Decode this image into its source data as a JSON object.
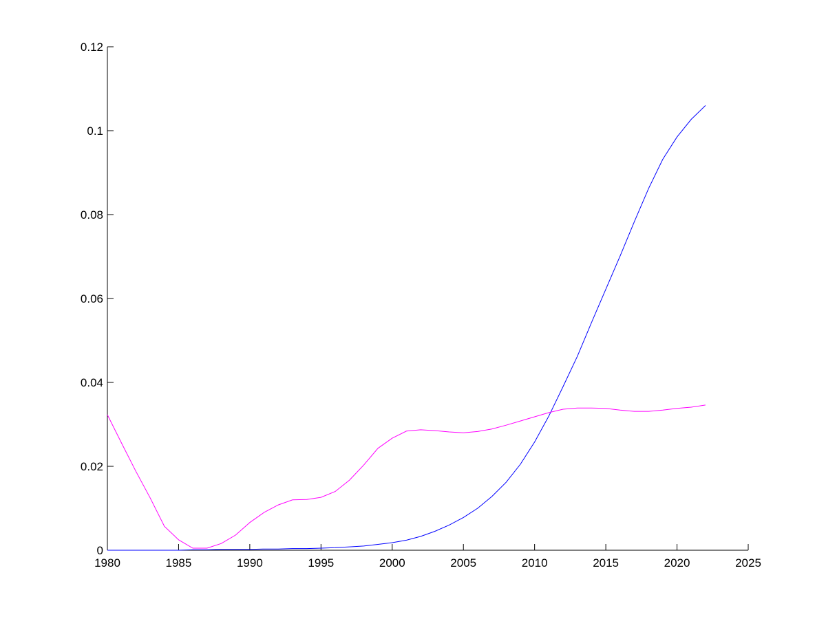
{
  "chart_data": {
    "type": "line",
    "title": "",
    "xlabel": "",
    "ylabel": "",
    "xlim": [
      1980,
      2025
    ],
    "ylim": [
      0,
      0.12
    ],
    "xticks": [
      "1980",
      "1985",
      "1990",
      "1995",
      "2000",
      "2005",
      "2010",
      "2015",
      "2020",
      "2025"
    ],
    "yticks": [
      "0",
      "0.02",
      "0.04",
      "0.06",
      "0.08",
      "0.1",
      "0.12"
    ],
    "grid": false,
    "legend": "none",
    "x": [
      1980,
      1981,
      1982,
      1983,
      1984,
      1985,
      1986,
      1987,
      1988,
      1989,
      1990,
      1991,
      1992,
      1993,
      1994,
      1995,
      1996,
      1997,
      1998,
      1999,
      2000,
      2001,
      2002,
      2003,
      2004,
      2005,
      2006,
      2007,
      2008,
      2009,
      2010,
      2011,
      2012,
      2013,
      2014,
      2015,
      2016,
      2017,
      2018,
      2019,
      2020,
      2021,
      2022
    ],
    "series": [
      {
        "color": "#0000ff",
        "values": [
          0,
          0,
          0,
          0,
          0,
          0,
          0.0001,
          0.0001,
          0.0002,
          0.0002,
          0.0002,
          0.0003,
          0.0003,
          0.0004,
          0.0004,
          0.0005,
          0.0006,
          0.0008,
          0.001,
          0.0014,
          0.0018,
          0.0024,
          0.0033,
          0.0045,
          0.006,
          0.0078,
          0.01,
          0.0128,
          0.0162,
          0.0205,
          0.0258,
          0.032,
          0.039,
          0.0462,
          0.0543,
          0.0622,
          0.0701,
          0.0783,
          0.0862,
          0.0932,
          0.0985,
          0.1027,
          0.106
        ]
      },
      {
        "color": "#ff00ff",
        "values": [
          0.0323,
          0.0255,
          0.0188,
          0.0125,
          0.0057,
          0.0025,
          0.0005,
          0.0005,
          0.0016,
          0.0036,
          0.0066,
          0.009,
          0.0108,
          0.012,
          0.0121,
          0.0126,
          0.014,
          0.0167,
          0.0203,
          0.0243,
          0.0267,
          0.0284,
          0.0287,
          0.0285,
          0.0282,
          0.028,
          0.0283,
          0.0289,
          0.0298,
          0.0308,
          0.0318,
          0.0328,
          0.0336,
          0.0339,
          0.0339,
          0.0338,
          0.0334,
          0.0331,
          0.0331,
          0.0334,
          0.0338,
          0.0341,
          0.0346
        ]
      }
    ]
  }
}
